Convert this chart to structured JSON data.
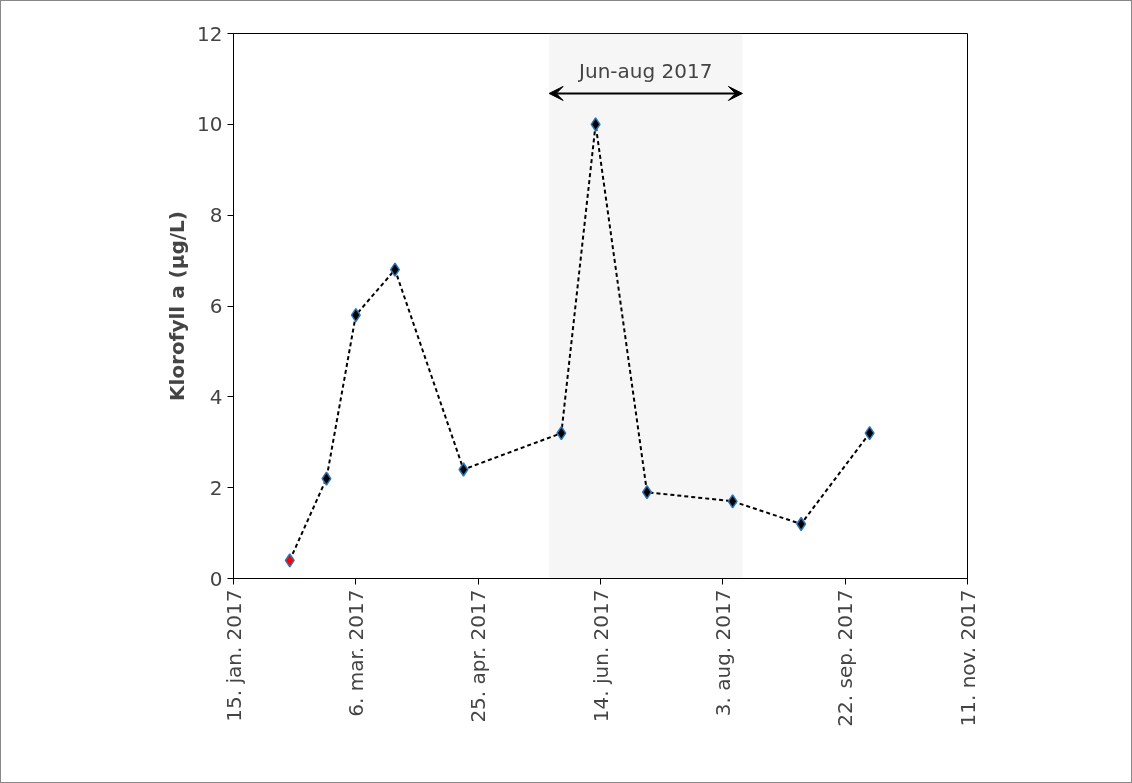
{
  "chart_data": {
    "type": "line",
    "ylabel": "Klorofyll a (µg/L)",
    "x": [
      "2017-02-07",
      "2017-02-22",
      "2017-03-06",
      "2017-03-22",
      "2017-04-19",
      "2017-05-29",
      "2017-06-12",
      "2017-07-03",
      "2017-08-07",
      "2017-09-04",
      "2017-10-02"
    ],
    "series": [
      {
        "color": "#000000",
        "colors": [
          "#ff0000",
          "#000000",
          "#000000",
          "#000000",
          "#000000",
          "#000000",
          "#000000",
          "#000000",
          "#000000",
          "#000000",
          "#000000"
        ],
        "values": [
          0.4,
          2.2,
          5.8,
          6.8,
          2.4,
          3.2,
          10,
          1.9,
          1.7,
          1.2,
          3.2
        ]
      }
    ],
    "xlim": [
      "2017-01-15",
      "2017-11-11"
    ],
    "xticks": [
      {
        "value": "2017-01-15",
        "label": "15. jan. 2017"
      },
      {
        "value": "2017-03-06",
        "label": "6. mar. 2017"
      },
      {
        "value": "2017-04-25",
        "label": "25. apr. 2017"
      },
      {
        "value": "2017-06-14",
        "label": "14. jun. 2017"
      },
      {
        "value": "2017-08-03",
        "label": "3. aug. 2017"
      },
      {
        "value": "2017-09-22",
        "label": "22. sep. 2017"
      },
      {
        "value": "2017-11-11",
        "label": "11. nov. 2017"
      }
    ],
    "ylim": [
      0,
      12
    ],
    "yticks": [
      0,
      2,
      4,
      6,
      8,
      10,
      12
    ],
    "bands": [
      {
        "axis": "x",
        "from": "2017-05-24",
        "to": "2017-08-11",
        "label": "Jun-aug 2017"
      }
    ],
    "grid": false,
    "marker": "diamond",
    "line_style": "dashed"
  }
}
